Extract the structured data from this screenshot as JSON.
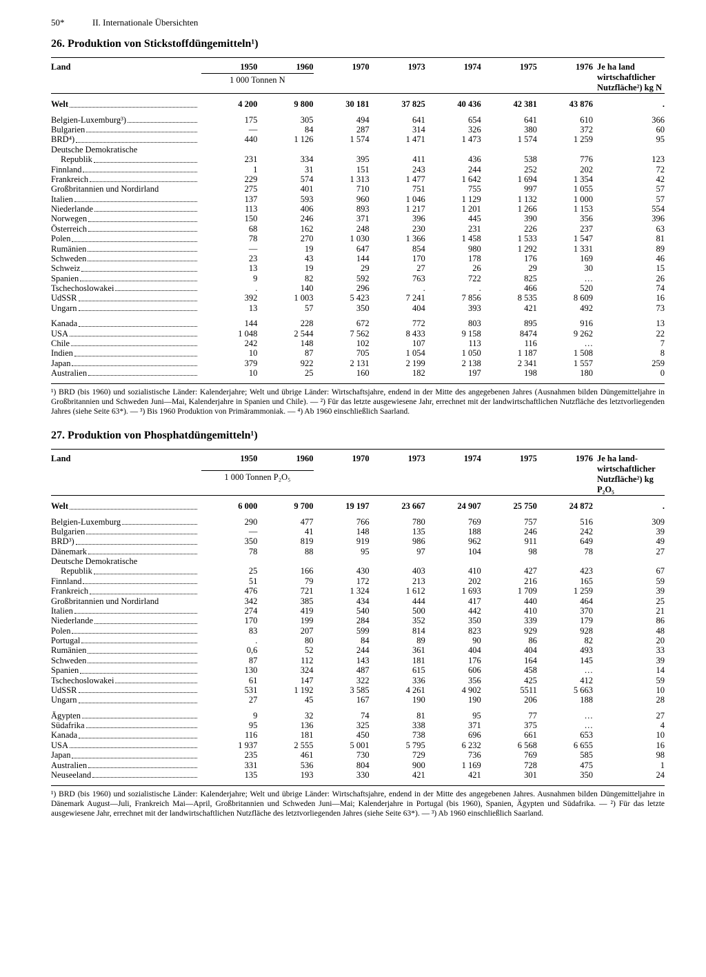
{
  "page": {
    "number": "50*",
    "section": "II. Internationale Übersichten"
  },
  "table26": {
    "title": "26. Produktion von Stickstoffdüngemitteln¹)",
    "header": {
      "land": "Land",
      "years": [
        "1950",
        "1960",
        "1970",
        "1973",
        "1974",
        "1975",
        "1976"
      ],
      "right": "Je ha land wirtschaft­licher Nutz­fläche²) kg N",
      "unit": "1 000 Tonnen N"
    },
    "world": {
      "label": "Welt",
      "vals": [
        "4 200",
        "9 800",
        "30 181",
        "37 825",
        "40 436",
        "42 381",
        "43 876",
        "."
      ]
    },
    "group1": [
      {
        "label": "Belgien-Luxemburg³)",
        "vals": [
          "175",
          "305",
          "494",
          "641",
          "654",
          "641",
          "610",
          "366"
        ]
      },
      {
        "label": "Bulgarien",
        "vals": [
          "—",
          "84",
          "287",
          "314",
          "326",
          "380",
          "372",
          "60"
        ]
      },
      {
        "label": "BRD⁴)",
        "vals": [
          "440",
          "1 126",
          "1 574",
          "1 471",
          "1 473",
          "1 574",
          "1 259",
          "95"
        ]
      },
      {
        "label": "Deutsche Demokratische",
        "continuation": true,
        "vals": [
          "",
          "",
          "",
          "",
          "",
          "",
          "",
          ""
        ]
      },
      {
        "label": "Republik",
        "indent": true,
        "vals": [
          "231",
          "334",
          "395",
          "411",
          "436",
          "538",
          "776",
          "123"
        ]
      },
      {
        "label": "Finnland",
        "vals": [
          "1",
          "31",
          "151",
          "243",
          "244",
          "252",
          "202",
          "72"
        ]
      },
      {
        "label": "Frankreich",
        "vals": [
          "229",
          "574",
          "1 313",
          "1 477",
          "1 642",
          "1 694",
          "1 354",
          "42"
        ]
      },
      {
        "label": "Großbritannien und Nordirland",
        "nodots": true,
        "vals": [
          "275",
          "401",
          "710",
          "751",
          "755",
          "997",
          "1 055",
          "57"
        ]
      },
      {
        "label": "Italien",
        "vals": [
          "137",
          "593",
          "960",
          "1 046",
          "1 129",
          "1 132",
          "1 000",
          "57"
        ]
      },
      {
        "label": "Niederlande",
        "vals": [
          "113",
          "406",
          "893",
          "1 217",
          "1 201",
          "1 266",
          "1 153",
          "554"
        ]
      },
      {
        "label": "Norwegen",
        "vals": [
          "150",
          "246",
          "371",
          "396",
          "445",
          "390",
          "356",
          "396"
        ]
      },
      {
        "label": "Österreich",
        "vals": [
          "68",
          "162",
          "248",
          "230",
          "231",
          "226",
          "237",
          "63"
        ]
      },
      {
        "label": "Polen",
        "vals": [
          "78",
          "270",
          "1 030",
          "1 366",
          "1 458",
          "1 533",
          "1 547",
          "81"
        ]
      },
      {
        "label": "Rumänien",
        "vals": [
          "—",
          "19",
          "647",
          "854",
          "980",
          "1 292",
          "1 331",
          "89"
        ]
      },
      {
        "label": "Schweden",
        "vals": [
          "23",
          "43",
          "144",
          "170",
          "178",
          "176",
          "169",
          "46"
        ]
      },
      {
        "label": "Schweiz",
        "vals": [
          "13",
          "19",
          "29",
          "27",
          "26",
          "29",
          "30",
          "15"
        ]
      },
      {
        "label": "Spanien",
        "vals": [
          "9",
          "82",
          "592",
          "763",
          "722",
          "825",
          "…",
          "26"
        ]
      },
      {
        "label": "Tschechoslowakei",
        "vals": [
          ".",
          "140",
          "296",
          ".",
          ".",
          "466",
          "520",
          "74"
        ]
      },
      {
        "label": "UdSSR",
        "vals": [
          "392",
          "1 003",
          "5 423",
          "7 241",
          "7 856",
          "8 535",
          "8 609",
          "16"
        ]
      },
      {
        "label": "Ungarn",
        "vals": [
          "13",
          "57",
          "350",
          "404",
          "393",
          "421",
          "492",
          "73"
        ]
      }
    ],
    "group2": [
      {
        "label": "Kanada",
        "vals": [
          "144",
          "228",
          "672",
          "772",
          "803",
          "895",
          "916",
          "13"
        ]
      },
      {
        "label": "USA",
        "vals": [
          "1 048",
          "2 544",
          "7 562",
          "8 433",
          "9 158",
          "8474",
          "9 262",
          "22"
        ]
      },
      {
        "label": "Chile",
        "vals": [
          "242",
          "148",
          "102",
          "107",
          "113",
          "116",
          "…",
          "7"
        ]
      },
      {
        "label": "Indien",
        "vals": [
          "10",
          "87",
          "705",
          "1 054",
          "1 050",
          "1 187",
          "1 508",
          "8"
        ]
      },
      {
        "label": "Japan",
        "vals": [
          "379",
          "922",
          "2 131",
          "2 199",
          "2 138",
          "2 341",
          "1 557",
          "259"
        ]
      },
      {
        "label": "Australien",
        "vals": [
          "10",
          "25",
          "160",
          "182",
          "197",
          "198",
          "180",
          "0"
        ]
      }
    ],
    "footnote": "¹) BRD (bis 1960) und sozialistische Länder: Kalenderjahre; Welt und übrige Länder: Wirtschaftsjahre, endend in der Mitte des an­gegebenen Jahres (Ausnahmen bilden Düngemitteljahre in Großbritannien und Schweden Juni—Mai, Kalenderjahre in Spanien und Chile). — ²) Für das letzte ausgewiesene Jahr, errechnet mit der landwirtschaftlichen Nutzfläche des letztvorliegenden Jahres (siehe Seite 63*). — ³) Bis 1960 Produktion von Primärammoniak. — ⁴) Ab 1960 einschließlich Saarland."
  },
  "table27": {
    "title": "27. Produktion von Phosphatdüngemitteln¹)",
    "header": {
      "land": "Land",
      "years": [
        "1950",
        "1960",
        "1970",
        "1973",
        "1974",
        "1975",
        "1976"
      ],
      "right": "Je ha land­wirtschaft­licher Nutz­fläche²) kg P₂O₅",
      "unit": "1 000 Tonnen P₂O₅"
    },
    "world": {
      "label": "Welt",
      "vals": [
        "6 000",
        "9 700",
        "19 197",
        "23 667",
        "24 907",
        "25 750",
        "24 872",
        "."
      ]
    },
    "group1": [
      {
        "label": "Belgien-Luxemburg",
        "vals": [
          "290",
          "477",
          "766",
          "780",
          "769",
          "757",
          "516",
          "309"
        ]
      },
      {
        "label": "Bulgarien",
        "vals": [
          "—",
          "41",
          "148",
          "135",
          "188",
          "246",
          "242",
          "39"
        ]
      },
      {
        "label": "BRD³)",
        "vals": [
          "350",
          "819",
          "919",
          "986",
          "962",
          "911",
          "649",
          "49"
        ]
      },
      {
        "label": "Dänemark",
        "vals": [
          "78",
          "88",
          "95",
          "97",
          "104",
          "98",
          "78",
          "27"
        ]
      },
      {
        "label": "Deutsche Demokratische",
        "continuation": true,
        "vals": [
          "",
          "",
          "",
          "",
          "",
          "",
          "",
          ""
        ]
      },
      {
        "label": "Republik",
        "indent": true,
        "vals": [
          "25",
          "166",
          "430",
          "403",
          "410",
          "427",
          "423",
          "67"
        ]
      },
      {
        "label": "Finnland",
        "vals": [
          "51",
          "79",
          "172",
          "213",
          "202",
          "216",
          "165",
          "59"
        ]
      },
      {
        "label": "Frankreich",
        "vals": [
          "476",
          "721",
          "1 324",
          "1 612",
          "1 693",
          "1 709",
          "1 259",
          "39"
        ]
      },
      {
        "label": "Großbritannien und Nordirland",
        "nodots": true,
        "vals": [
          "342",
          "385",
          "434",
          "444",
          "417",
          "440",
          "464",
          "25"
        ]
      },
      {
        "label": "Italien",
        "vals": [
          "274",
          "419",
          "540",
          "500",
          "442",
          "410",
          "370",
          "21"
        ]
      },
      {
        "label": "Niederlande",
        "vals": [
          "170",
          "199",
          "284",
          "352",
          "350",
          "339",
          "179",
          "86"
        ]
      },
      {
        "label": "Polen",
        "vals": [
          "83",
          "207",
          "599",
          "814",
          "823",
          "929",
          "928",
          "48"
        ]
      },
      {
        "label": "Portugal",
        "vals": [
          ".",
          "80",
          "84",
          "89",
          "90",
          "86",
          "82",
          "20"
        ]
      },
      {
        "label": "Rumänien",
        "vals": [
          "0,6",
          "52",
          "244",
          "361",
          "404",
          "404",
          "493",
          "33"
        ]
      },
      {
        "label": "Schweden",
        "vals": [
          "87",
          "112",
          "143",
          "181",
          "176",
          "164",
          "145",
          "39"
        ]
      },
      {
        "label": "Spanien",
        "vals": [
          "130",
          "324",
          "487",
          "615",
          "606",
          "458",
          "…",
          "14"
        ]
      },
      {
        "label": "Tschechoslowakei",
        "vals": [
          "61",
          "147",
          "322",
          "336",
          "356",
          "425",
          "412",
          "59"
        ]
      },
      {
        "label": "UdSSR",
        "vals": [
          "531",
          "1 192",
          "3 585",
          "4 261",
          "4 902",
          "5511",
          "5 663",
          "10"
        ]
      },
      {
        "label": "Ungarn",
        "vals": [
          "27",
          "45",
          "167",
          "190",
          "190",
          "206",
          "188",
          "28"
        ]
      }
    ],
    "group2": [
      {
        "label": "Ägypten",
        "vals": [
          "9",
          "32",
          "74",
          "81",
          "95",
          "77",
          "…",
          "27"
        ]
      },
      {
        "label": "Südafrika",
        "vals": [
          "95",
          "136",
          "325",
          "338",
          "371",
          "375",
          "…",
          "4"
        ]
      },
      {
        "label": "Kanada",
        "vals": [
          "116",
          "181",
          "450",
          "738",
          "696",
          "661",
          "653",
          "10"
        ]
      },
      {
        "label": "USA",
        "vals": [
          "1 937",
          "2 555",
          "5 001",
          "5 795",
          "6 232",
          "6 568",
          "6 655",
          "16"
        ]
      },
      {
        "label": "Japan",
        "vals": [
          "235",
          "461",
          "730",
          "729",
          "736",
          "769",
          "585",
          "98"
        ]
      },
      {
        "label": "Australien",
        "vals": [
          "331",
          "536",
          "804",
          "900",
          "1 169",
          "728",
          "475",
          "1"
        ]
      },
      {
        "label": "Neuseeland",
        "vals": [
          "135",
          "193",
          "330",
          "421",
          "421",
          "301",
          "350",
          "24"
        ]
      }
    ],
    "footnote": "¹) BRD (bis 1960) und sozialistische Länder: Kalenderjahre; Welt und übrige Länder: Wirtschaftsjahre, endend in der Mitte des an­gegebenen Jahres. Ausnahmen bilden Düngemitteljahre in Dänemark August—Juli, Frankreich Mai—April, Großbritannien und Schweden Juni—Mai; Kalenderjahre in Portugal (bis 1960), Spanien, Ägypten und Südafrika. — ²) Für das letzte ausgewiesene Jahr, errechnet mit der landwirtschaftlichen Nutzfläche des letztvorliegenden Jahres (siehe Seite 63*). — ³) Ab 1960 einschließlich Saarland."
  },
  "style": {
    "body_bg": "#ffffff",
    "text_color": "#000000",
    "body_fontsize": 13,
    "table_fontsize": 12.5,
    "footnote_fontsize": 11.5,
    "title_fontsize": 16,
    "col_land_width": 210,
    "col_year_width": 78,
    "col_right_width": 100,
    "rule_thick": 1.8,
    "rule_thin": 0.8
  }
}
